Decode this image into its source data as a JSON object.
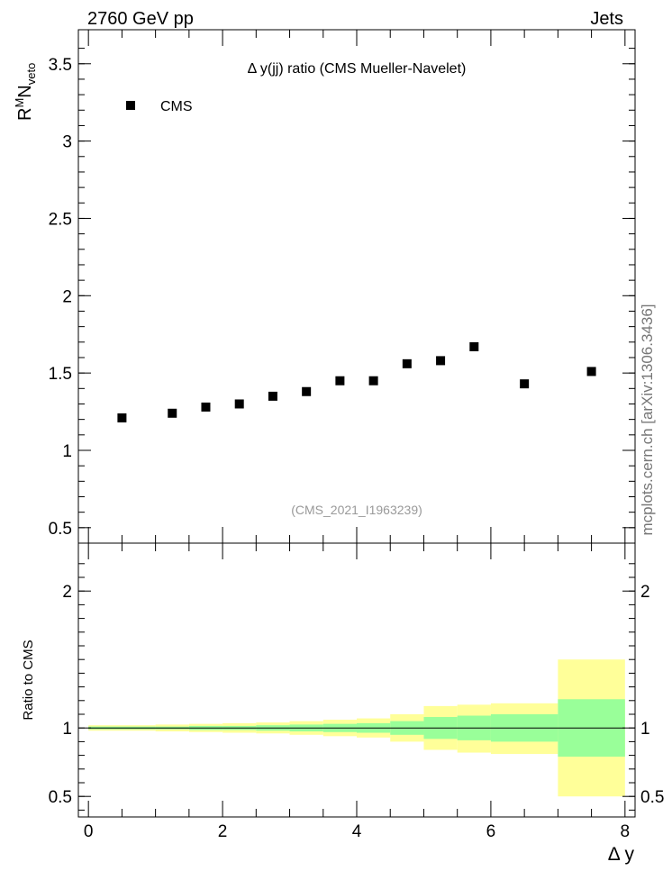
{
  "header": {
    "left_label": "2760 GeV pp",
    "right_label": "Jets"
  },
  "side_label": "mcplots.cern.ch [arXiv:1306.3436]",
  "chart_data": [
    {
      "type": "scatter",
      "title": "Δ y(jj) ratio (CMS Mueller-Navelet)",
      "watermark": "(CMS_2021_I1963239)",
      "ylabel_parts": {
        "main1": "R",
        "sup": "M",
        "main2": "N",
        "sub": "veto"
      },
      "xlim": [
        -0.15,
        8.15
      ],
      "ylim": [
        0.4,
        3.72
      ],
      "yticks": [
        0.5,
        1,
        1.5,
        2,
        2.5,
        3,
        3.5
      ],
      "ytick_labels": [
        "0.5",
        "1",
        "1.5",
        "2",
        "2.5",
        "3",
        "3.5"
      ],
      "legend": {
        "position": "top-left"
      },
      "series": [
        {
          "name": "CMS",
          "marker": "square",
          "color": "#000000",
          "x": [
            0.5,
            1.25,
            1.75,
            2.25,
            2.75,
            3.25,
            3.75,
            4.25,
            4.75,
            5.25,
            5.75,
            6.5,
            7.5
          ],
          "y": [
            1.21,
            1.24,
            1.28,
            1.3,
            1.35,
            1.38,
            1.45,
            1.45,
            1.56,
            1.58,
            1.67,
            1.43,
            1.51
          ]
        }
      ]
    },
    {
      "type": "area",
      "ylabel": "Ratio to CMS",
      "xlabel": "Δ y",
      "xlim": [
        -0.15,
        8.15
      ],
      "ylim": [
        0.35,
        2.35
      ],
      "xticks": [
        0,
        2,
        4,
        6,
        8
      ],
      "xtick_labels": [
        "0",
        "2",
        "4",
        "6",
        "8"
      ],
      "yticks": [
        0.5,
        1,
        2
      ],
      "ytick_labels": [
        "0.5",
        "1",
        "2"
      ],
      "reference_line": 1,
      "bins": [
        {
          "x0": 0.0,
          "x1": 1.0,
          "inner": [
            0.99,
            1.01
          ],
          "outer": [
            0.98,
            1.02
          ]
        },
        {
          "x0": 1.0,
          "x1": 1.5,
          "inner": [
            0.99,
            1.01
          ],
          "outer": [
            0.975,
            1.025
          ]
        },
        {
          "x0": 1.5,
          "x1": 2.0,
          "inner": [
            0.985,
            1.015
          ],
          "outer": [
            0.97,
            1.03
          ]
        },
        {
          "x0": 2.0,
          "x1": 2.5,
          "inner": [
            0.985,
            1.015
          ],
          "outer": [
            0.965,
            1.035
          ]
        },
        {
          "x0": 2.5,
          "x1": 3.0,
          "inner": [
            0.98,
            1.02
          ],
          "outer": [
            0.96,
            1.04
          ]
        },
        {
          "x0": 3.0,
          "x1": 3.5,
          "inner": [
            0.975,
            1.025
          ],
          "outer": [
            0.95,
            1.05
          ]
        },
        {
          "x0": 3.5,
          "x1": 4.0,
          "inner": [
            0.97,
            1.03
          ],
          "outer": [
            0.94,
            1.06
          ]
        },
        {
          "x0": 4.0,
          "x1": 4.5,
          "inner": [
            0.965,
            1.035
          ],
          "outer": [
            0.93,
            1.07
          ]
        },
        {
          "x0": 4.5,
          "x1": 5.0,
          "inner": [
            0.95,
            1.05
          ],
          "outer": [
            0.9,
            1.1
          ]
        },
        {
          "x0": 5.0,
          "x1": 5.5,
          "inner": [
            0.92,
            1.08
          ],
          "outer": [
            0.84,
            1.16
          ]
        },
        {
          "x0": 5.5,
          "x1": 6.0,
          "inner": [
            0.91,
            1.09
          ],
          "outer": [
            0.82,
            1.17
          ]
        },
        {
          "x0": 6.0,
          "x1": 7.0,
          "inner": [
            0.9,
            1.1
          ],
          "outer": [
            0.81,
            1.18
          ]
        },
        {
          "x0": 7.0,
          "x1": 8.0,
          "inner": [
            0.79,
            1.21
          ],
          "outer": [
            0.5,
            1.5
          ]
        }
      ],
      "colors": {
        "inner": "#99ff99",
        "outer": "#ffff99",
        "line": "#000000"
      }
    }
  ]
}
